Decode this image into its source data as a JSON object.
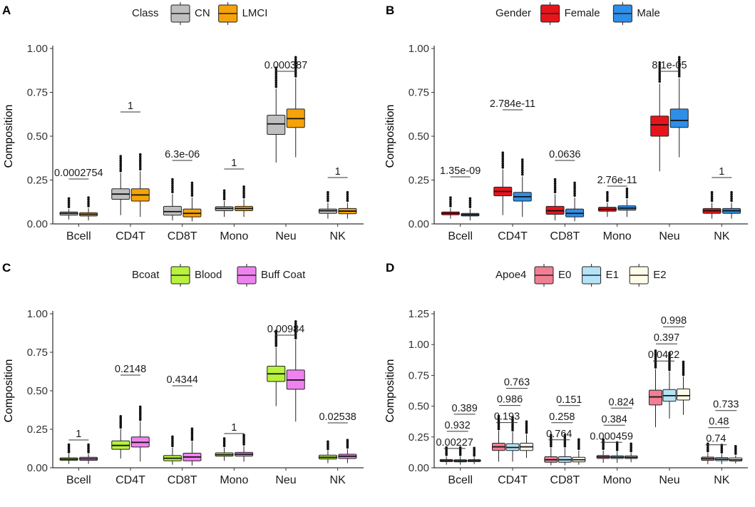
{
  "chart_data": [
    {
      "panel": "A",
      "type": "box",
      "ylabel": "Composition",
      "ylim": [
        0,
        1.0
      ],
      "yticks": [
        "0.00",
        "0.25",
        "0.50",
        "0.75",
        "1.00"
      ],
      "categories": [
        "Bcell",
        "CD4T",
        "CD8T",
        "Mono",
        "Neu",
        "NK"
      ],
      "legend": {
        "title": "Class",
        "entries": [
          {
            "name": "CN",
            "color": "#bfbfbf"
          },
          {
            "name": "LMCI",
            "color": "#f5a30a"
          }
        ]
      },
      "pvalues": [
        "0.0002754",
        "1",
        "6.3e-06",
        "1",
        "0.000387",
        "1"
      ],
      "series": [
        {
          "name": "CN",
          "boxes": [
            [
              0.025,
              0.05,
              0.06,
              0.068,
              0.085
            ],
            [
              0.05,
              0.14,
              0.17,
              0.2,
              0.29
            ],
            [
              0.02,
              0.05,
              0.07,
              0.1,
              0.17
            ],
            [
              0.04,
              0.075,
              0.088,
              0.098,
              0.13
            ],
            [
              0.35,
              0.51,
              0.57,
              0.62,
              0.77
            ],
            [
              0.03,
              0.06,
              0.075,
              0.085,
              0.12
            ]
          ]
        },
        {
          "name": "LMCI",
          "boxes": [
            [
              0.02,
              0.045,
              0.055,
              0.064,
              0.09
            ],
            [
              0.04,
              0.13,
              0.165,
              0.2,
              0.3
            ],
            [
              0.015,
              0.04,
              0.06,
              0.085,
              0.15
            ],
            [
              0.04,
              0.075,
              0.088,
              0.1,
              0.14
            ],
            [
              0.38,
              0.55,
              0.6,
              0.655,
              0.83
            ],
            [
              0.03,
              0.058,
              0.073,
              0.088,
              0.12
            ]
          ]
        }
      ]
    },
    {
      "panel": "B",
      "type": "box",
      "ylabel": "Composition",
      "ylim": [
        0,
        1.0
      ],
      "yticks": [
        "0.00",
        "0.25",
        "0.50",
        "0.75",
        "1.00"
      ],
      "categories": [
        "Bcell",
        "CD4T",
        "CD8T",
        "Mono",
        "Neu",
        "NK"
      ],
      "legend": {
        "title": "Gender",
        "entries": [
          {
            "name": "Female",
            "color": "#e8141b"
          },
          {
            "name": "Male",
            "color": "#2e8ee8"
          }
        ]
      },
      "pvalues": [
        "1.35e-09",
        "2.784e-11",
        "0.0636",
        "2.76e-11",
        "8.1e-05",
        "1"
      ],
      "series": [
        {
          "name": "Female",
          "boxes": [
            [
              0.03,
              0.052,
              0.06,
              0.068,
              0.09
            ],
            [
              0.05,
              0.16,
              0.185,
              0.21,
              0.31
            ],
            [
              0.02,
              0.055,
              0.075,
              0.1,
              0.17
            ],
            [
              0.04,
              0.072,
              0.083,
              0.095,
              0.12
            ],
            [
              0.3,
              0.5,
              0.565,
              0.615,
              0.8
            ],
            [
              0.03,
              0.06,
              0.075,
              0.088,
              0.12
            ]
          ]
        },
        {
          "name": "Male",
          "boxes": [
            [
              0.02,
              0.045,
              0.052,
              0.06,
              0.085
            ],
            [
              0.04,
              0.13,
              0.155,
              0.18,
              0.27
            ],
            [
              0.015,
              0.04,
              0.06,
              0.085,
              0.15
            ],
            [
              0.04,
              0.078,
              0.09,
              0.103,
              0.14
            ],
            [
              0.38,
              0.55,
              0.59,
              0.655,
              0.83
            ],
            [
              0.03,
              0.06,
              0.075,
              0.088,
              0.12
            ]
          ]
        }
      ]
    },
    {
      "panel": "C",
      "type": "box",
      "ylabel": "Composition",
      "ylim": [
        0,
        1.0
      ],
      "yticks": [
        "0.00",
        "0.25",
        "0.50",
        "0.75",
        "1.00"
      ],
      "categories": [
        "Bcell",
        "CD4T",
        "CD8T",
        "Mono",
        "Neu",
        "NK"
      ],
      "legend": {
        "title": "Bcoat",
        "entries": [
          {
            "name": "Blood",
            "color": "#b7f23c"
          },
          {
            "name": "Buff Coat",
            "color": "#ee82ee"
          }
        ]
      },
      "pvalues": [
        "1",
        "0.2148",
        "0.4344",
        "1",
        "0.00984",
        "0.02538"
      ],
      "series": [
        {
          "name": "Blood",
          "boxes": [
            [
              0.025,
              0.048,
              0.056,
              0.065,
              0.09
            ],
            [
              0.06,
              0.12,
              0.145,
              0.175,
              0.25
            ],
            [
              0.02,
              0.045,
              0.062,
              0.08,
              0.13
            ],
            [
              0.045,
              0.075,
              0.085,
              0.097,
              0.13
            ],
            [
              0.4,
              0.56,
              0.61,
              0.66,
              0.78
            ],
            [
              0.03,
              0.057,
              0.068,
              0.082,
              0.11
            ]
          ]
        },
        {
          "name": "Buff Coat",
          "boxes": [
            [
              0.025,
              0.048,
              0.058,
              0.068,
              0.09
            ],
            [
              0.04,
              0.135,
              0.165,
              0.2,
              0.3
            ],
            [
              0.015,
              0.045,
              0.07,
              0.095,
              0.17
            ],
            [
              0.04,
              0.076,
              0.088,
              0.1,
              0.14
            ],
            [
              0.3,
              0.51,
              0.57,
              0.635,
              0.83
            ],
            [
              0.03,
              0.06,
              0.075,
              0.088,
              0.12
            ]
          ]
        }
      ]
    },
    {
      "panel": "D",
      "type": "box",
      "ylabel": "Composition",
      "ylim": [
        0,
        1.25
      ],
      "yticks": [
        "0.00",
        "0.25",
        "0.50",
        "0.75",
        "1.00",
        "1.25"
      ],
      "categories": [
        "Bcell",
        "CD4T",
        "CD8T",
        "Mono",
        "Neu",
        "NK"
      ],
      "legend": {
        "title": "Apoe4",
        "entries": [
          {
            "name": "E0",
            "color": "#f07f94"
          },
          {
            "name": "E1",
            "color": "#b5e2f7"
          },
          {
            "name": "E2",
            "color": "#fffbe8"
          }
        ]
      },
      "pvalues": [
        [
          "0.00227",
          "0.932",
          "0.389"
        ],
        [
          "0.193",
          "0.986",
          "0.763"
        ],
        [
          "0.764",
          "0.258",
          "0.151"
        ],
        [
          "0.000459",
          "0.384",
          "0.824"
        ],
        [
          "0.0422",
          "0.397",
          "0.998"
        ],
        [
          "0.74",
          "0.48",
          "0.733"
        ]
      ],
      "series": [
        {
          "name": "E0",
          "boxes": [
            [
              0.025,
              0.05,
              0.058,
              0.067,
              0.09
            ],
            [
              0.05,
              0.14,
              0.17,
              0.2,
              0.3
            ],
            [
              0.02,
              0.045,
              0.065,
              0.09,
              0.16
            ],
            [
              0.04,
              0.076,
              0.088,
              0.1,
              0.14
            ],
            [
              0.33,
              0.51,
              0.575,
              0.63,
              0.8
            ],
            [
              0.03,
              0.06,
              0.073,
              0.087,
              0.12
            ]
          ]
        },
        {
          "name": "E1",
          "boxes": [
            [
              0.025,
              0.048,
              0.056,
              0.065,
              0.09
            ],
            [
              0.05,
              0.14,
              0.165,
              0.195,
              0.29
            ],
            [
              0.02,
              0.045,
              0.065,
              0.09,
              0.16
            ],
            [
              0.04,
              0.075,
              0.086,
              0.098,
              0.13
            ],
            [
              0.4,
              0.54,
              0.585,
              0.635,
              0.78
            ],
            [
              0.03,
              0.058,
              0.07,
              0.083,
              0.11
            ]
          ]
        },
        {
          "name": "E2",
          "boxes": [
            [
              0.03,
              0.05,
              0.058,
              0.066,
              0.085
            ],
            [
              0.08,
              0.14,
              0.17,
              0.2,
              0.27
            ],
            [
              0.025,
              0.048,
              0.065,
              0.085,
              0.14
            ],
            [
              0.045,
              0.075,
              0.085,
              0.097,
              0.12
            ],
            [
              0.43,
              0.55,
              0.585,
              0.64,
              0.74
            ],
            [
              0.035,
              0.055,
              0.065,
              0.08,
              0.1
            ]
          ]
        }
      ]
    }
  ]
}
